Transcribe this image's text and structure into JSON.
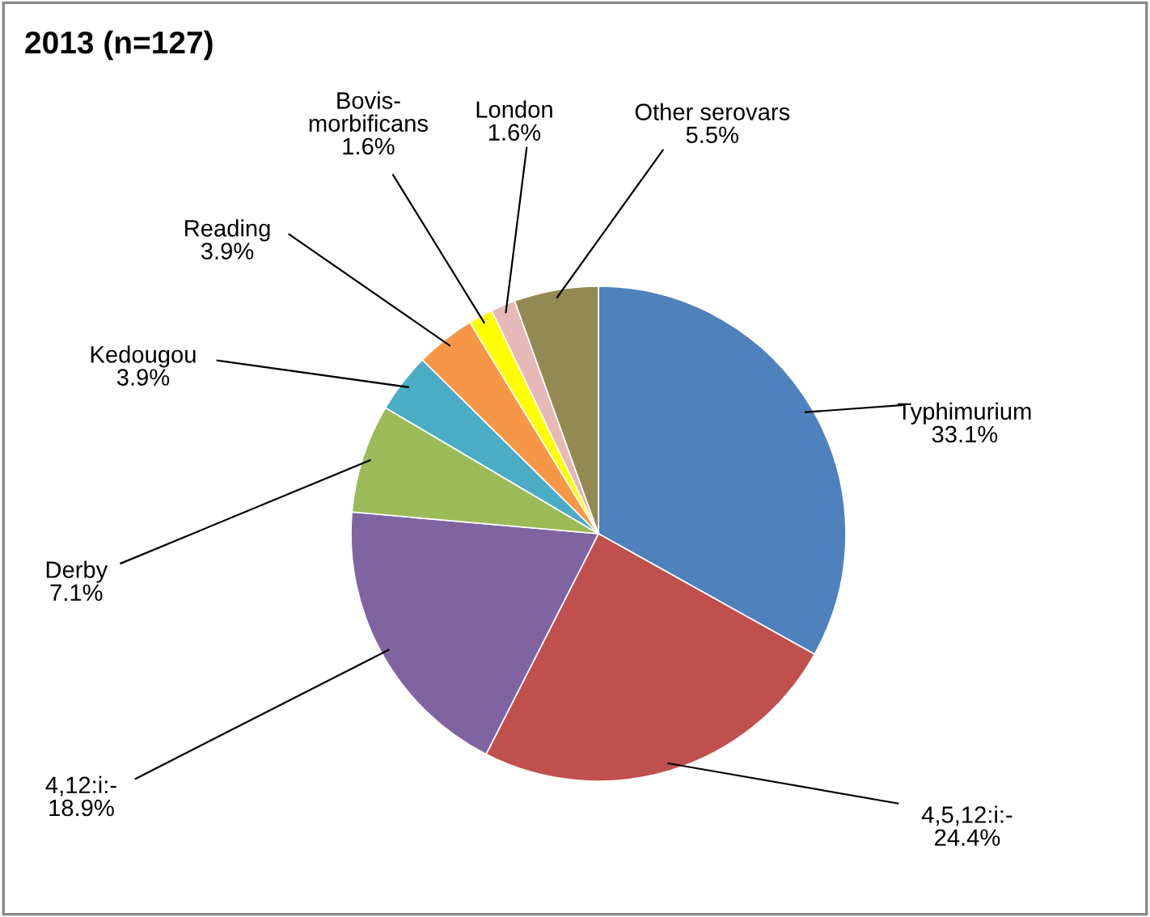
{
  "chart_data": {
    "type": "pie",
    "title": "2013 (n=127)",
    "categories": [
      "Typhimurium",
      "4,5,12:i:-",
      "4,12:i:-",
      "Derby",
      "Kedougou",
      "Reading",
      "Bovis-\nmorbificans",
      "London",
      "Other serovars"
    ],
    "values": [
      33.1,
      24.4,
      18.9,
      7.1,
      3.9,
      3.9,
      1.6,
      1.6,
      5.5
    ],
    "value_labels": [
      "33.1%",
      "24.4%",
      "18.9%",
      "7.1%",
      "3.9%",
      "3.9%",
      "1.6%",
      "1.6%",
      "5.5%"
    ],
    "colors": [
      "#4f81bd",
      "#c0504d",
      "#8064a2",
      "#9bbb59",
      "#4bacc6",
      "#f79646",
      "#ffff00",
      "#e6b9b8",
      "#938953"
    ]
  }
}
